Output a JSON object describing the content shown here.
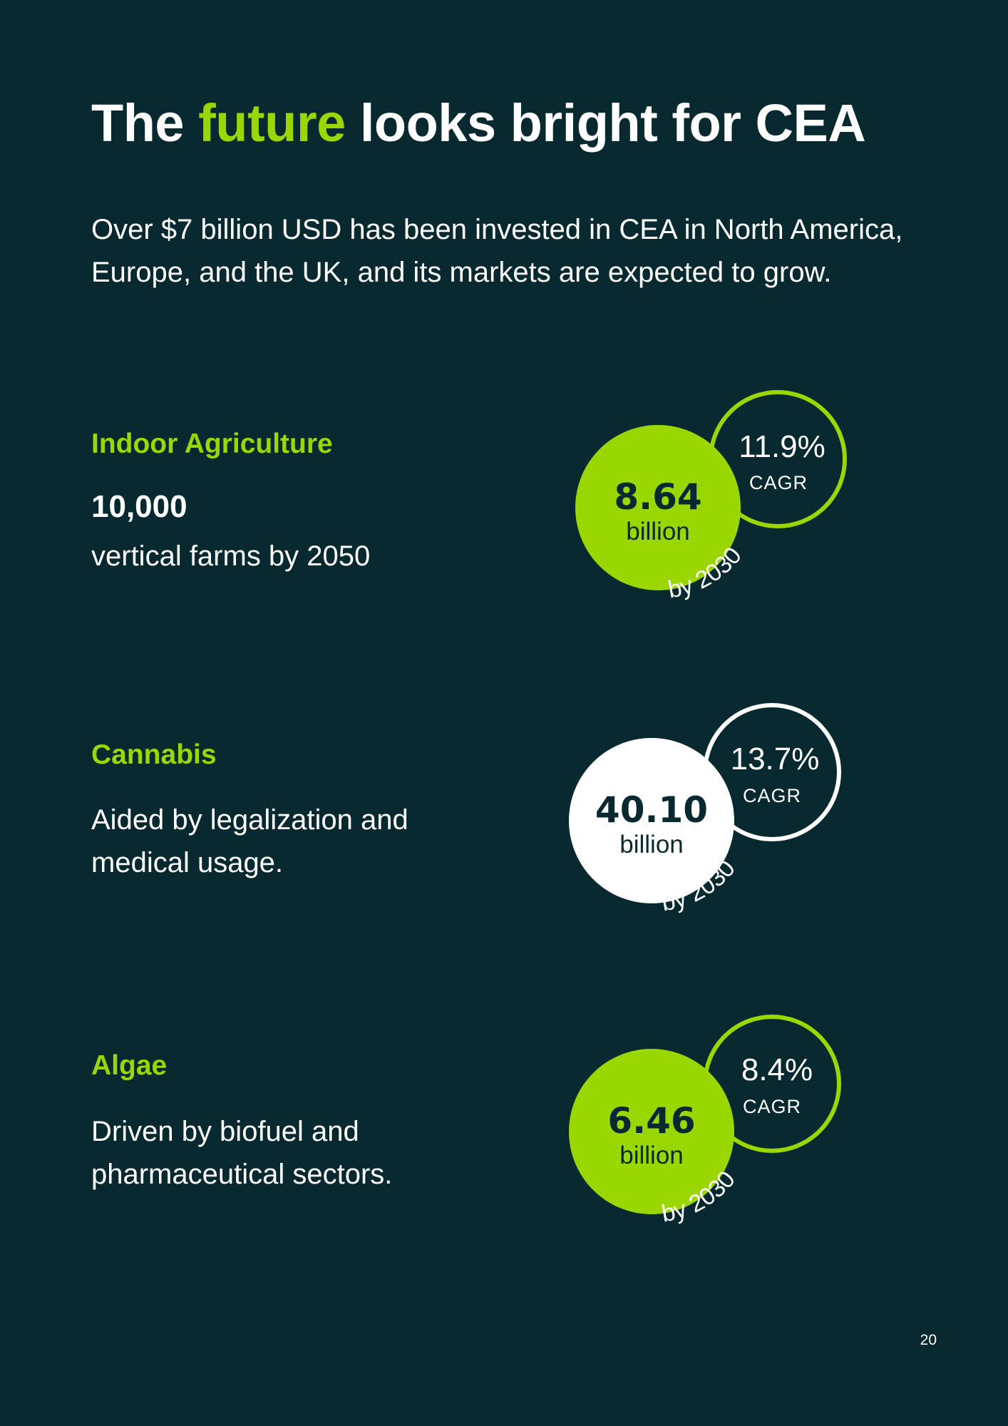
{
  "colors": {
    "background": "#082930",
    "accent": "#9ad600",
    "white": "#ffffff"
  },
  "title": {
    "before": "The ",
    "highlight": "future",
    "after": " looks bright for CEA"
  },
  "intro": "Over $7 billion USD has been invested in CEA in North America, Europe, and the UK, and its markets are expected to grow.",
  "sections": [
    {
      "title": "Indoor Agriculture",
      "stat": "10,000",
      "description": "vertical farms by 2050",
      "market_value": "8.64",
      "unit": "billion",
      "cagr_value": "11.9%",
      "cagr_label": "CAGR",
      "year_label": "by 2030",
      "color": "#9ad600"
    },
    {
      "title": "Cannabis",
      "description": "Aided by legalization and medical usage.",
      "market_value": "40.10",
      "unit": "billion",
      "cagr_value": "13.7%",
      "cagr_label": "CAGR",
      "year_label": "by 2030",
      "color": "#ffffff"
    },
    {
      "title": "Algae",
      "description": "Driven by biofuel and pharmaceutical sectors.",
      "market_value": "6.46",
      "unit": "billion",
      "cagr_value": "8.4%",
      "cagr_label": "CAGR",
      "year_label": "by 2030",
      "color": "#9ad600"
    }
  ],
  "page_number": "20"
}
